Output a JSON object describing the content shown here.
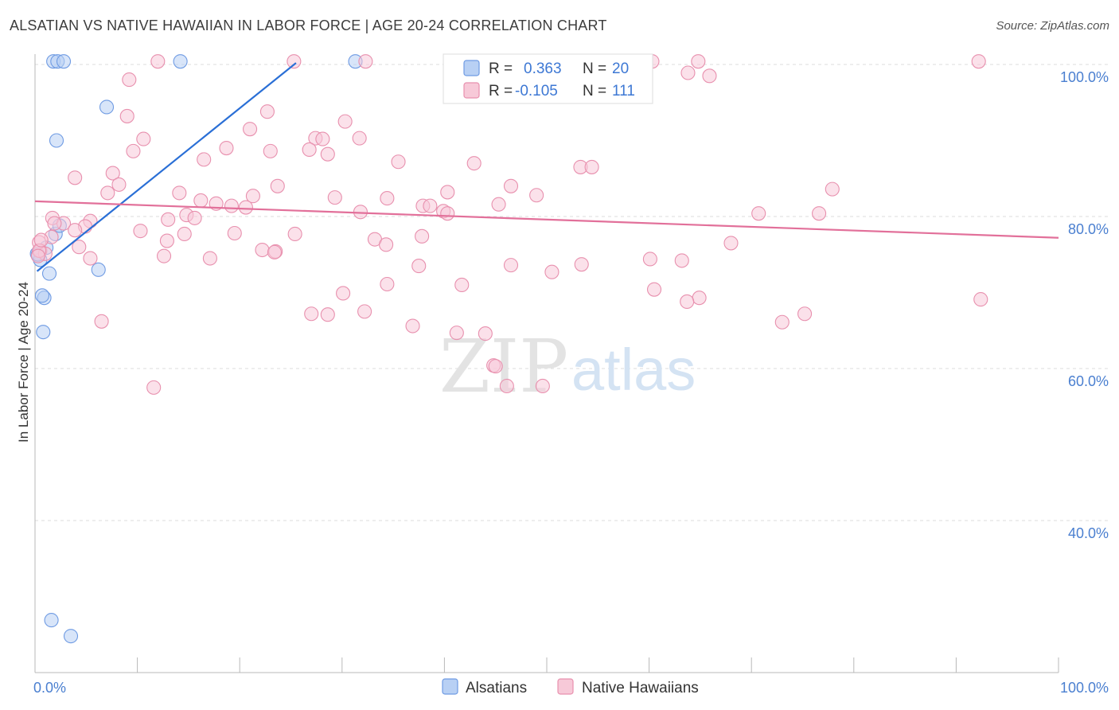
{
  "title": "ALSATIAN VS NATIVE HAWAIIAN IN LABOR FORCE | AGE 20-24 CORRELATION CHART",
  "source": "Source: ZipAtlas.com",
  "watermark": {
    "zip": "ZIP",
    "atlas": "atlas"
  },
  "chart_data": {
    "type": "scatter",
    "ylabel": "In Labor Force | Age 20-24",
    "xlim": [
      0,
      100
    ],
    "ylim": [
      18,
      102
    ],
    "x_tick_labels": [
      {
        "value": 0,
        "label": "0.0%"
      },
      {
        "value": 100,
        "label": "100.0%"
      }
    ],
    "y_ticks": [
      {
        "value": 100,
        "label": "100.0%"
      },
      {
        "value": 80,
        "label": "80.0%"
      },
      {
        "value": 60,
        "label": "60.0%"
      },
      {
        "value": 40,
        "label": "40.0%"
      }
    ],
    "legend": {
      "r_label": "R =",
      "n_label": "N =",
      "entries": [
        {
          "name": "Alsatians",
          "r": "0.363",
          "n": "20"
        },
        {
          "name": "Native Hawaiians",
          "r": "-0.105",
          "n": "111"
        }
      ]
    },
    "series": [
      {
        "name": "Alsatians",
        "color": "#6f9be3",
        "fill": "#b8d0f4",
        "trend": {
          "x0": 0.2,
          "y0": 72.8,
          "x1": 25.5,
          "y1": 100.2
        },
        "points": [
          [
            1.8,
            100.4
          ],
          [
            2.2,
            100.4
          ],
          [
            2.8,
            100.4
          ],
          [
            14.2,
            100.4
          ],
          [
            31.3,
            100.4
          ],
          [
            7.0,
            94.4
          ],
          [
            2.1,
            90.0
          ],
          [
            2.0,
            77.7
          ],
          [
            2.4,
            78.8
          ],
          [
            1.1,
            75.9
          ],
          [
            0.2,
            75.1
          ],
          [
            0.5,
            74.3
          ],
          [
            1.4,
            72.5
          ],
          [
            6.2,
            73.0
          ],
          [
            0.9,
            69.3
          ],
          [
            0.7,
            69.6
          ],
          [
            0.8,
            64.8
          ],
          [
            1.6,
            26.9
          ],
          [
            3.5,
            24.8
          ],
          [
            0.3,
            75.0
          ]
        ]
      },
      {
        "name": "Native Hawaiians",
        "color": "#e890ae",
        "fill": "#f7c9d8",
        "trend": {
          "x0": 0,
          "y0": 82.0,
          "x1": 100,
          "y1": 77.2
        },
        "points": [
          [
            12.0,
            100.4
          ],
          [
            25.3,
            100.4
          ],
          [
            32.3,
            100.4
          ],
          [
            60.3,
            100.4
          ],
          [
            64.8,
            100.4
          ],
          [
            92.2,
            100.4
          ],
          [
            9.2,
            98.0
          ],
          [
            63.8,
            98.9
          ],
          [
            65.9,
            98.5
          ],
          [
            9.0,
            93.2
          ],
          [
            22.7,
            93.8
          ],
          [
            30.3,
            92.5
          ],
          [
            21.0,
            91.5
          ],
          [
            10.6,
            90.2
          ],
          [
            27.4,
            90.3
          ],
          [
            28.1,
            90.2
          ],
          [
            31.7,
            90.3
          ],
          [
            9.6,
            88.6
          ],
          [
            18.7,
            89.0
          ],
          [
            23.0,
            88.6
          ],
          [
            26.8,
            88.8
          ],
          [
            28.6,
            88.2
          ],
          [
            16.5,
            87.5
          ],
          [
            35.5,
            87.2
          ],
          [
            42.9,
            87.0
          ],
          [
            53.3,
            86.5
          ],
          [
            54.4,
            86.5
          ],
          [
            3.9,
            85.1
          ],
          [
            7.6,
            85.7
          ],
          [
            8.2,
            84.2
          ],
          [
            23.7,
            84.0
          ],
          [
            46.5,
            84.0
          ],
          [
            77.9,
            83.6
          ],
          [
            7.1,
            83.1
          ],
          [
            14.1,
            83.1
          ],
          [
            40.3,
            83.2
          ],
          [
            49.0,
            82.8
          ],
          [
            21.3,
            82.7
          ],
          [
            29.3,
            82.5
          ],
          [
            34.4,
            82.4
          ],
          [
            16.2,
            82.1
          ],
          [
            17.7,
            81.7
          ],
          [
            19.2,
            81.4
          ],
          [
            20.6,
            81.2
          ],
          [
            37.9,
            81.4
          ],
          [
            45.3,
            81.6
          ],
          [
            38.6,
            81.4
          ],
          [
            39.9,
            80.7
          ],
          [
            31.8,
            80.6
          ],
          [
            14.8,
            80.2
          ],
          [
            40.3,
            80.4
          ],
          [
            70.7,
            80.4
          ],
          [
            76.6,
            80.4
          ],
          [
            1.7,
            79.8
          ],
          [
            15.6,
            79.8
          ],
          [
            2.8,
            79.1
          ],
          [
            5.4,
            79.4
          ],
          [
            13.0,
            79.6
          ],
          [
            1.9,
            79.1
          ],
          [
            4.9,
            78.7
          ],
          [
            3.9,
            78.2
          ],
          [
            10.3,
            78.1
          ],
          [
            14.6,
            77.7
          ],
          [
            19.5,
            77.8
          ],
          [
            25.4,
            77.7
          ],
          [
            1.6,
            77.3
          ],
          [
            12.9,
            76.8
          ],
          [
            0.4,
            76.6
          ],
          [
            37.8,
            77.4
          ],
          [
            33.2,
            77.0
          ],
          [
            34.3,
            76.3
          ],
          [
            68.0,
            76.5
          ],
          [
            0.5,
            75.5
          ],
          [
            22.2,
            75.6
          ],
          [
            23.5,
            75.4
          ],
          [
            1.0,
            75.1
          ],
          [
            12.6,
            74.8
          ],
          [
            17.1,
            74.5
          ],
          [
            5.4,
            74.5
          ],
          [
            60.1,
            74.4
          ],
          [
            63.2,
            74.2
          ],
          [
            46.5,
            73.6
          ],
          [
            53.4,
            73.7
          ],
          [
            37.5,
            73.5
          ],
          [
            50.5,
            72.7
          ],
          [
            0.4,
            75.5
          ],
          [
            4.3,
            76.0
          ],
          [
            0.3,
            74.8
          ],
          [
            23.4,
            75.3
          ],
          [
            34.4,
            71.1
          ],
          [
            41.7,
            71.0
          ],
          [
            60.5,
            70.4
          ],
          [
            30.1,
            69.9
          ],
          [
            64.9,
            69.3
          ],
          [
            92.4,
            69.1
          ],
          [
            63.7,
            68.8
          ],
          [
            27.0,
            67.2
          ],
          [
            28.6,
            67.1
          ],
          [
            32.2,
            67.5
          ],
          [
            75.2,
            67.2
          ],
          [
            6.5,
            66.2
          ],
          [
            36.9,
            65.6
          ],
          [
            41.2,
            64.7
          ],
          [
            73.0,
            66.1
          ],
          [
            44.0,
            64.6
          ],
          [
            44.8,
            60.4
          ],
          [
            45.0,
            60.3
          ],
          [
            46.1,
            57.7
          ],
          [
            49.6,
            57.7
          ],
          [
            11.6,
            57.5
          ],
          [
            0.6,
            76.9
          ]
        ]
      }
    ]
  }
}
